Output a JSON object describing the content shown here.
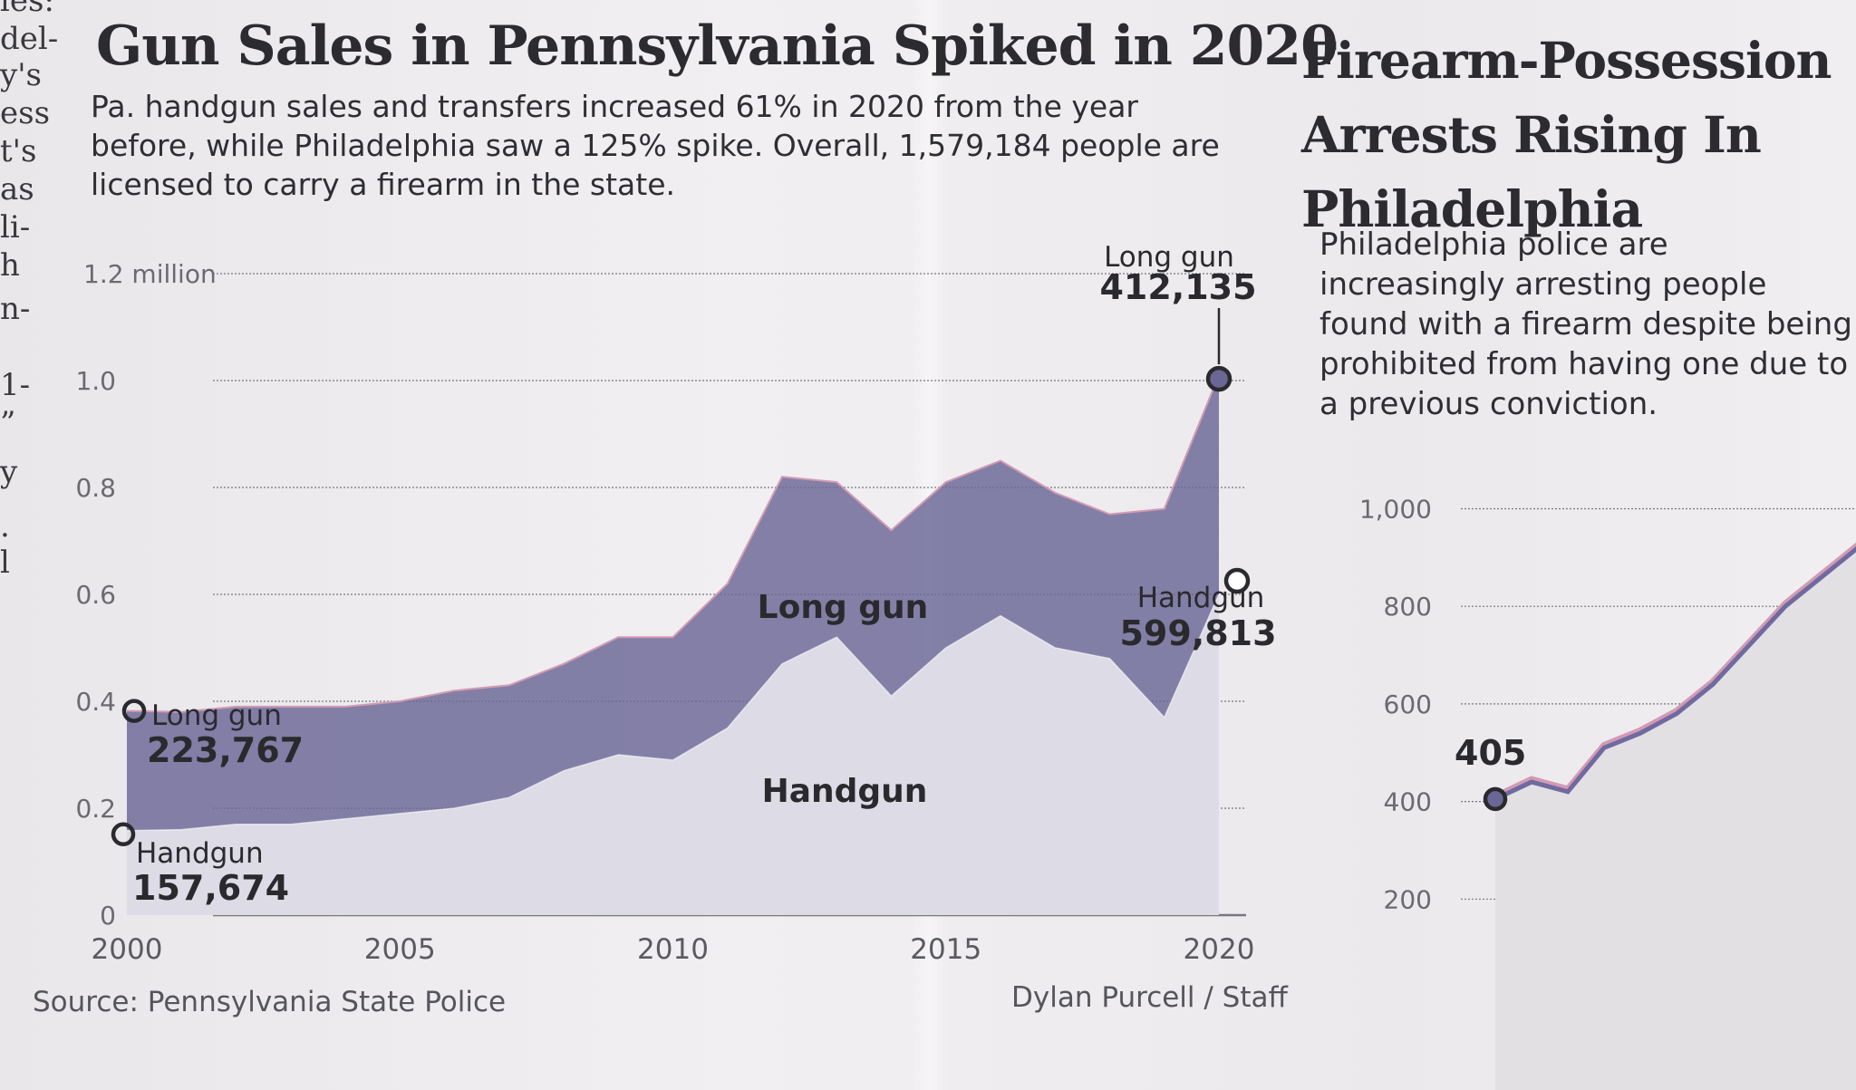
{
  "margin_text": [
    "les:",
    "del-",
    "y's",
    "ess",
    "t's",
    "as",
    "li-",
    "h",
    "n-",
    "",
    "1-",
    "”",
    "y",
    ".",
    "l"
  ],
  "main": {
    "title": "Gun Sales in Pennsylvania Spiked in 2020",
    "dek": "Pa. handgun sales and transfers increased 61% in 2020 from the year before, while Philadelphia saw a 125% spike. Overall, 1,579,184 people are licensed to carry a firearm in the state.",
    "source": "Source: Pennsylvania State Police",
    "credit": "Dylan Purcell / Staff"
  },
  "right": {
    "title": "Firearm-Possession Arrests Rising In Philadelphia",
    "dek": "Philadelphia police are increasingly arresting people found with a firearm despite being prohibited from having one due to a previous conviction."
  },
  "colors": {
    "longgun": "#6a6796",
    "handgun": "#dcdbe6",
    "line": "#6f6aa0",
    "line_shadow": "#d29ab4",
    "ink": "#2a2a2e",
    "grid": "#77777c"
  },
  "chart_data": [
    {
      "type": "area",
      "stacked": true,
      "title": "Gun Sales in Pennsylvania Spiked in 2020",
      "x": [
        2000,
        2001,
        2002,
        2003,
        2004,
        2005,
        2006,
        2007,
        2008,
        2009,
        2010,
        2011,
        2012,
        2013,
        2014,
        2015,
        2016,
        2017,
        2018,
        2019,
        2020
      ],
      "xticks": [
        2000,
        2005,
        2010,
        2015,
        2020
      ],
      "xtick_labels": [
        "2000",
        "2005",
        "2010",
        "2015",
        "2020"
      ],
      "yticks": [
        0,
        0.2,
        0.4,
        0.6,
        0.8,
        1.0,
        1.2
      ],
      "ytick_labels": [
        "0",
        "0.2",
        "0.4",
        "0.6",
        "0.8",
        "1.0",
        "1.2 million"
      ],
      "ylim": [
        0,
        1.2
      ],
      "series": [
        {
          "name": "Handgun",
          "values": [
            0.158,
            0.16,
            0.17,
            0.17,
            0.18,
            0.19,
            0.2,
            0.22,
            0.27,
            0.3,
            0.29,
            0.35,
            0.47,
            0.52,
            0.41,
            0.5,
            0.56,
            0.5,
            0.48,
            0.37,
            0.6
          ]
        },
        {
          "name": "Long gun",
          "values": [
            0.224,
            0.22,
            0.22,
            0.22,
            0.21,
            0.21,
            0.22,
            0.21,
            0.2,
            0.22,
            0.23,
            0.27,
            0.35,
            0.29,
            0.31,
            0.31,
            0.29,
            0.29,
            0.27,
            0.39,
            0.41
          ]
        }
      ],
      "labels": {
        "longgun_area": "Long gun",
        "handgun_area": "Handgun",
        "start_longgun_name": "Long gun",
        "start_longgun_value": "223,767",
        "start_handgun_name": "Handgun",
        "start_handgun_value": "157,674",
        "end_longgun_name": "Long gun",
        "end_longgun_value": "412,135",
        "end_handgun_name": "Handgun",
        "end_handgun_value": "599,813"
      }
    },
    {
      "type": "line",
      "title": "Firearm-Possession Arrests Rising In Philadelphia",
      "yticks": [
        200,
        400,
        600,
        800,
        1000
      ],
      "ytick_labels": [
        "200",
        "400",
        "600",
        "800",
        "1,000"
      ],
      "ylim": [
        150,
        1050
      ],
      "x": [
        0,
        1,
        2,
        3,
        4,
        5,
        6,
        7,
        8,
        9,
        10
      ],
      "values": [
        405,
        440,
        420,
        510,
        540,
        580,
        640,
        720,
        800,
        860,
        920
      ],
      "start_label": "405"
    }
  ]
}
